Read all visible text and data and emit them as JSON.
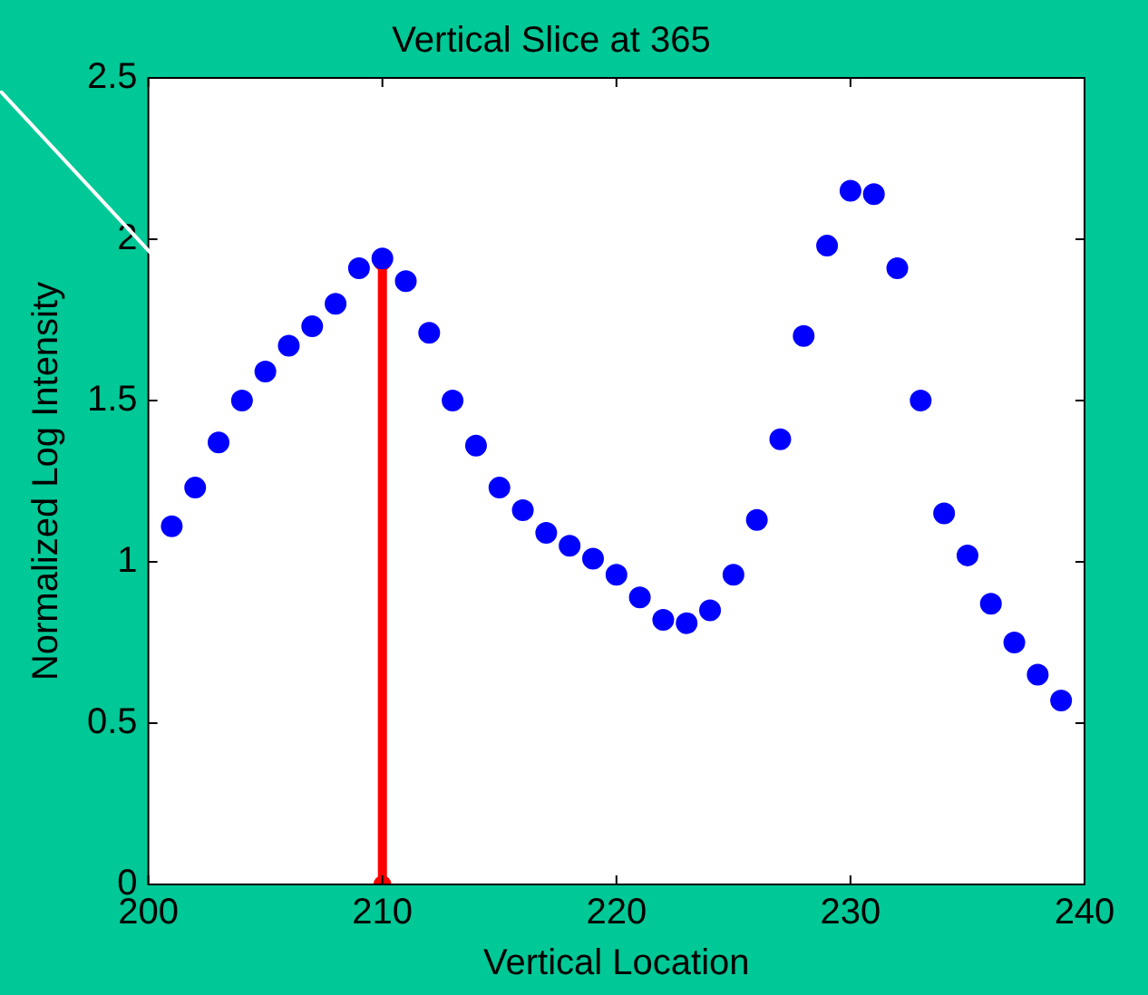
{
  "chart_data": {
    "type": "scatter",
    "title": "Vertical Slice at 365",
    "xlabel": "Vertical Location",
    "ylabel": "Normalized Log Intensity",
    "xlim": [
      200,
      240
    ],
    "ylim": [
      0,
      2.5
    ],
    "xticks": [
      200,
      210,
      220,
      230,
      240
    ],
    "yticks": [
      0,
      0.5,
      1,
      1.5,
      2,
      2.5
    ],
    "grid": false,
    "legend": false,
    "marker": "circle",
    "series": [
      {
        "color": "#0000ff",
        "x": [
          201,
          202,
          203,
          204,
          205,
          206,
          207,
          208,
          209,
          210,
          211,
          212,
          213,
          214,
          215,
          216,
          217,
          218,
          219,
          220,
          221,
          222,
          223,
          224,
          225,
          226,
          227,
          228,
          229,
          230,
          231,
          232,
          233,
          234,
          235,
          236,
          237,
          238,
          239
        ],
        "values": [
          1.11,
          1.23,
          1.37,
          1.5,
          1.59,
          1.67,
          1.73,
          1.8,
          1.91,
          1.94,
          1.87,
          1.71,
          1.5,
          1.36,
          1.23,
          1.16,
          1.09,
          1.05,
          1.01,
          0.96,
          0.89,
          0.82,
          0.81,
          0.85,
          0.96,
          1.13,
          1.38,
          1.7,
          1.98,
          2.15,
          2.14,
          1.91,
          1.5,
          1.15,
          1.02,
          0.87,
          0.75,
          0.65,
          0.57
        ]
      },
      {
        "type": "line",
        "color": "#ff0000",
        "x": [
          210,
          210
        ],
        "values": [
          0,
          1.93
        ]
      }
    ]
  }
}
